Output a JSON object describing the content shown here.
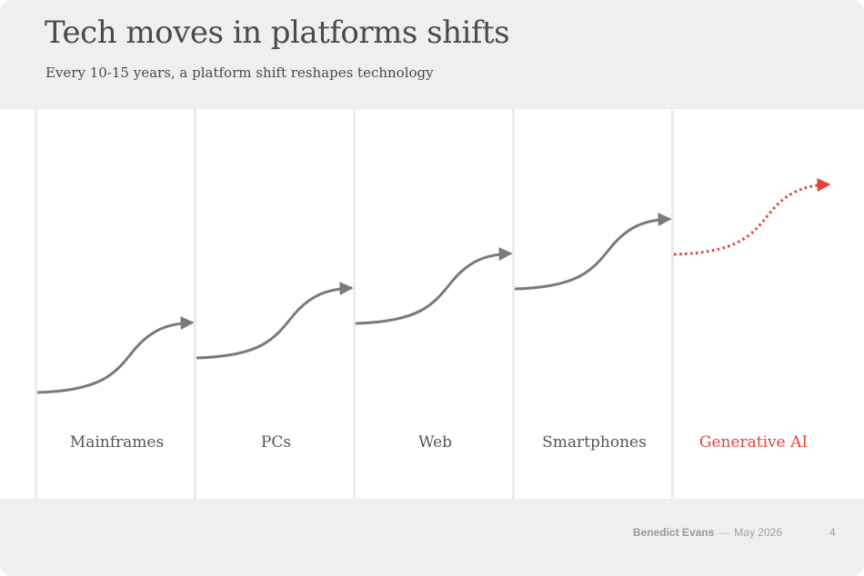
{
  "slide": {
    "title": "Tech moves in platforms shifts",
    "subtitle": "Every 10-15 years, a platform shift reshapes technology"
  },
  "stages": [
    {
      "label": "Mainframes",
      "status": "past"
    },
    {
      "label": "PCs",
      "status": "past"
    },
    {
      "label": "Web",
      "status": "past"
    },
    {
      "label": "Smartphones",
      "status": "past"
    },
    {
      "label": "Generative AI",
      "status": "future"
    }
  ],
  "colors": {
    "past_curve": "#7a7a7a",
    "future_curve": "#e0443a",
    "label": "#555555",
    "future_label": "#e0443a"
  },
  "footer": {
    "author": "Benedict Evans",
    "separator": "—",
    "date": "May 2026",
    "page": "4"
  }
}
